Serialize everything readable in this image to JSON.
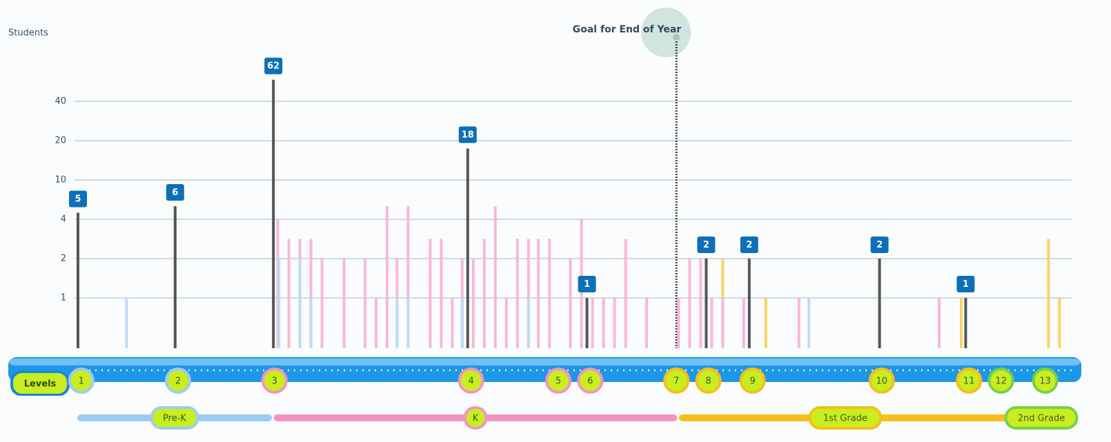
{
  "chart_data": {
    "type": "bar",
    "y_label": "Students",
    "xlim": [
      0,
      90
    ],
    "ylim": [
      0,
      80
    ],
    "yticks": [
      1,
      2,
      4,
      10,
      20,
      40
    ],
    "grid": true,
    "series": [
      {
        "color": "#555555",
        "data_labels": true,
        "x": [
          0,
          8.8,
          17.7,
          35.3,
          46.1,
          56.9,
          60.8,
          72.6,
          80.4
        ],
        "values": [
          5,
          6,
          62,
          18,
          1,
          2,
          2,
          2,
          1
        ]
      },
      {
        "color": "#f9d26a",
        "x": [
          58.4,
          62.3,
          80,
          87.9,
          88.9
        ],
        "values": [
          2,
          1,
          1,
          3,
          1
        ]
      },
      {
        "color": "#f9b7d8",
        "x": [
          18.1,
          19.1,
          20.1,
          21.1,
          22.1,
          24.1,
          26,
          27,
          28,
          28.9,
          29.9,
          31.9,
          32.9,
          33.9,
          34.8,
          35.8,
          36.8,
          37.8,
          38.8,
          39.8,
          40.8,
          41.7,
          42.7,
          44.6,
          45.6,
          46.6,
          47.6,
          48.6,
          49.6,
          51.5,
          54.4,
          55.4,
          56.4,
          57.4,
          58.4,
          60.3,
          65.3,
          78
        ],
        "values": [
          4,
          3,
          3,
          3,
          2,
          2,
          2,
          1,
          6,
          2,
          6,
          3,
          3,
          1,
          2,
          2,
          3,
          6,
          1,
          3,
          3,
          3,
          3,
          2,
          4,
          1,
          1,
          1,
          3,
          1,
          1,
          2,
          2,
          1,
          1,
          1,
          1,
          1
        ]
      },
      {
        "color": "#bcdcf8",
        "x": [
          4.4,
          18.2,
          20.1,
          21.1,
          28.9,
          29.9,
          34.8,
          40.8,
          66.2
        ],
        "values": [
          1,
          2,
          2,
          1,
          1,
          1,
          1,
          1,
          1
        ]
      }
    ],
    "goal": {
      "label": "Goal for End of Year",
      "x": 54.2
    },
    "levels_title": "Levels",
    "levels": [
      {
        "label": "1",
        "x": 0.3,
        "color": "#9ccbf3"
      },
      {
        "label": "2",
        "x": 9.06,
        "color": "#9ccbf3"
      },
      {
        "label": "3",
        "x": 17.8,
        "color": "#f592c4"
      },
      {
        "label": "4",
        "x": 35.6,
        "color": "#f592c4"
      },
      {
        "label": "5",
        "x": 43.5,
        "color": "#f592c4"
      },
      {
        "label": "6",
        "x": 46.4,
        "color": "#f592c4"
      },
      {
        "label": "7",
        "x": 54.2,
        "color": "#f7be19"
      },
      {
        "label": "8",
        "x": 57.1,
        "color": "#f7be19"
      },
      {
        "label": "9",
        "x": 61.1,
        "color": "#f7be19"
      },
      {
        "label": "10",
        "x": 72.8,
        "color": "#f7be19"
      },
      {
        "label": "11",
        "x": 80.7,
        "color": "#f7be19"
      },
      {
        "label": "12",
        "x": 83.6,
        "color": "#74d14a"
      },
      {
        "label": "13",
        "x": 87.6,
        "color": "#74d14a"
      }
    ],
    "grades": [
      {
        "label": "Pre-K",
        "start": 0,
        "end": 17.5,
        "color": "#9ccbf3"
      },
      {
        "label": "K",
        "start": 17.8,
        "end": 54.2,
        "color": "#f592c4"
      },
      {
        "label": "1st Grade",
        "start": 54.5,
        "end": 84.5,
        "color": "#f7be19"
      },
      {
        "label": "2nd Grade",
        "start": 84.5,
        "end": 90,
        "color": "#74d14a"
      }
    ]
  }
}
